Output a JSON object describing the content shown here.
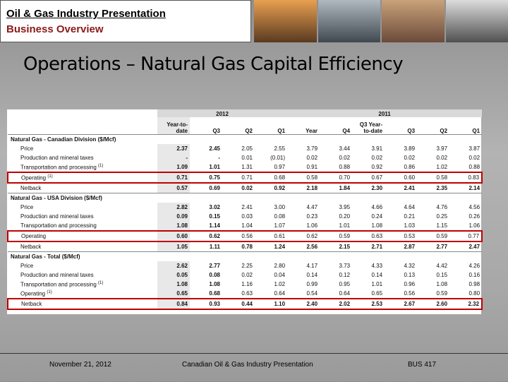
{
  "header": {
    "title": "Oil & Gas Industry Presentation",
    "subtitle": "Business Overview"
  },
  "slide_title": "Operations – Natural Gas Capital Efficiency",
  "table": {
    "groups": [
      "2012",
      "2011"
    ],
    "columns": [
      "Year-to-date",
      "Q3",
      "Q2",
      "Q1",
      "Year",
      "Q4",
      "Q3 Year-to-date",
      "Q3",
      "Q2",
      "Q1"
    ],
    "sections": [
      {
        "title": "Natural Gas - Canadian Division ($/Mcf)",
        "rows": [
          {
            "label": "Price",
            "cells": [
              "2.37",
              "2.45",
              "2.05",
              "2.55",
              "3.79",
              "3.44",
              "3.91",
              "3.89",
              "3.97",
              "3.87"
            ]
          },
          {
            "label": "Production and mineral taxes",
            "cells": [
              "-",
              "-",
              "0.01",
              "(0.01)",
              "0.02",
              "0.02",
              "0.02",
              "0.02",
              "0.02",
              "0.02"
            ]
          },
          {
            "label": "Transportation and processing",
            "note": "(1)",
            "cells": [
              "1.09",
              "1.01",
              "1.31",
              "0.97",
              "0.91",
              "0.88",
              "0.92",
              "0.86",
              "1.02",
              "0.88"
            ]
          },
          {
            "label": "Operating",
            "note": "(1)",
            "highlight": true,
            "cells": [
              "0.71",
              "0.75",
              "0.71",
              "0.68",
              "0.58",
              "0.70",
              "0.67",
              "0.60",
              "0.58",
              "0.83"
            ]
          },
          {
            "label": "Netback",
            "cells": [
              "0.57",
              "0.69",
              "0.02",
              "0.92",
              "2.18",
              "1.84",
              "2.30",
              "2.41",
              "2.35",
              "2.14"
            ]
          }
        ]
      },
      {
        "title": "Natural Gas - USA Division ($/Mcf)",
        "rows": [
          {
            "label": "Price",
            "cells": [
              "2.82",
              "3.02",
              "2.41",
              "3.00",
              "4.47",
              "3.95",
              "4.66",
              "4.64",
              "4.76",
              "4.56"
            ]
          },
          {
            "label": "Production and mineral taxes",
            "cells": [
              "0.09",
              "0.15",
              "0.03",
              "0.08",
              "0.23",
              "0.20",
              "0.24",
              "0.21",
              "0.25",
              "0.26"
            ]
          },
          {
            "label": "Transportation and processing",
            "cells": [
              "1.08",
              "1.14",
              "1.04",
              "1.07",
              "1.06",
              "1.01",
              "1.08",
              "1.03",
              "1.15",
              "1.06"
            ]
          },
          {
            "label": "Operating",
            "highlight": true,
            "cells": [
              "0.60",
              "0.62",
              "0.56",
              "0.61",
              "0.62",
              "0.59",
              "0.63",
              "0.53",
              "0.59",
              "0.77"
            ]
          },
          {
            "label": "Netback",
            "cells": [
              "1.05",
              "1.11",
              "0.78",
              "1.24",
              "2.56",
              "2.15",
              "2.71",
              "2.87",
              "2.77",
              "2.47"
            ]
          }
        ]
      },
      {
        "title": "Natural Gas - Total ($/Mcf)",
        "rows": [
          {
            "label": "Price",
            "cells": [
              "2.62",
              "2.77",
              "2.25",
              "2.80",
              "4.17",
              "3.73",
              "4.33",
              "4.32",
              "4.42",
              "4.26"
            ]
          },
          {
            "label": "Production and mineral taxes",
            "cells": [
              "0.05",
              "0.08",
              "0.02",
              "0.04",
              "0.14",
              "0.12",
              "0.14",
              "0.13",
              "0.15",
              "0.16"
            ]
          },
          {
            "label": "Transportation and processing",
            "note": "(1)",
            "cells": [
              "1.08",
              "1.08",
              "1.16",
              "1.02",
              "0.99",
              "0.95",
              "1.01",
              "0.96",
              "1.08",
              "0.98"
            ]
          },
          {
            "label": "Operating",
            "note": "(1)",
            "cells": [
              "0.65",
              "0.68",
              "0.63",
              "0.64",
              "0.54",
              "0.64",
              "0.65",
              "0.56",
              "0.59",
              "0.80"
            ]
          },
          {
            "label": "Netback",
            "highlight": true,
            "cells": [
              "0.84",
              "0.93",
              "0.44",
              "1.10",
              "2.40",
              "2.02",
              "2.53",
              "2.67",
              "2.60",
              "2.32"
            ]
          }
        ]
      }
    ]
  },
  "footer": {
    "date": "November 21, 2012",
    "center": "Canadian Oil & Gas Industry Presentation",
    "code": "BUS 417"
  }
}
